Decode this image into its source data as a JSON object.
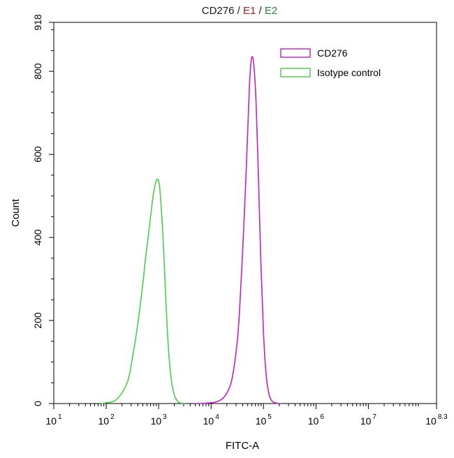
{
  "chart_data": {
    "type": "line",
    "title_parts": [
      {
        "text": "CD276",
        "color": "#1a1a1a"
      },
      {
        "text": " / ",
        "color": "#1a1a1a"
      },
      {
        "text": "E1",
        "color": "#b02020"
      },
      {
        "text": " / ",
        "color": "#1a1a1a"
      },
      {
        "text": "E2",
        "color": "#2a8a2a"
      }
    ],
    "xlabel": "FITC-A",
    "ylabel": "Count",
    "xscale": "log",
    "xlim_log10": [
      1,
      8.3
    ],
    "ylim": [
      0,
      918
    ],
    "x_ticks": [
      {
        "base": "10",
        "exp": "1",
        "log10": 1
      },
      {
        "base": "10",
        "exp": "2",
        "log10": 2
      },
      {
        "base": "10",
        "exp": "3",
        "log10": 3
      },
      {
        "base": "10",
        "exp": "4",
        "log10": 4
      },
      {
        "base": "10",
        "exp": "5",
        "log10": 5
      },
      {
        "base": "10",
        "exp": "6",
        "log10": 6
      },
      {
        "base": "10",
        "exp": "7",
        "log10": 7
      },
      {
        "base": "10",
        "exp": "8.3",
        "log10": 8.3
      }
    ],
    "y_ticks": [
      {
        "label": "0",
        "value": 0
      },
      {
        "label": "200",
        "value": 200
      },
      {
        "label": "400",
        "value": 400
      },
      {
        "label": "600",
        "value": 600
      },
      {
        "label": "800",
        "value": 800
      },
      {
        "label": "918",
        "value": 918
      }
    ],
    "legend_position": "top-right",
    "series": [
      {
        "name": "CD276",
        "color": "#c020c8",
        "x_log10": [
          3.7,
          3.8,
          3.9,
          4.0,
          4.1,
          4.2,
          4.3,
          4.4,
          4.5,
          4.55,
          4.6,
          4.65,
          4.7,
          4.73,
          4.76,
          4.79,
          4.82,
          4.86,
          4.9,
          4.95,
          5.0,
          5.05,
          5.1,
          5.15,
          5.2,
          5.25,
          5.3
        ],
        "y": [
          0,
          0,
          1,
          2,
          4,
          10,
          25,
          60,
          150,
          240,
          360,
          500,
          660,
          760,
          820,
          835,
          810,
          720,
          560,
          340,
          170,
          70,
          25,
          8,
          3,
          1,
          0
        ]
      },
      {
        "name": "Isotype control",
        "color": "#48d048",
        "x_log10": [
          1.9,
          2.0,
          2.2,
          2.4,
          2.5,
          2.6,
          2.7,
          2.75,
          2.8,
          2.85,
          2.9,
          2.95,
          2.98,
          3.01,
          3.04,
          3.08,
          3.12,
          3.16,
          3.2,
          3.25,
          3.3,
          3.35,
          3.4,
          3.5
        ],
        "y": [
          0,
          2,
          10,
          50,
          110,
          190,
          290,
          350,
          400,
          455,
          505,
          535,
          540,
          530,
          490,
          410,
          300,
          190,
          110,
          50,
          20,
          7,
          2,
          0
        ]
      }
    ]
  }
}
